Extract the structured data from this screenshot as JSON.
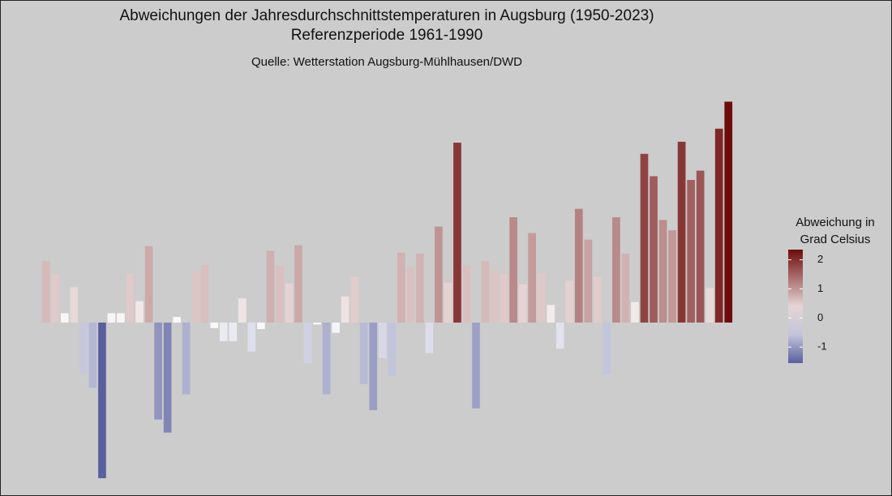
{
  "chart_data": {
    "type": "bar",
    "title": "Abweichungen der Jahresdurchschnittstemperaturen in Augsburg (1950-2023)",
    "subtitle": "Referenzperiode 1961-1990",
    "caption": "Quelle: Wetterstation Augsburg-Mühlhausen/DWD",
    "values": [
      0.66,
      0.52,
      0.1,
      0.38,
      -0.54,
      -0.7,
      -1.67,
      0.1,
      0.1,
      0.52,
      0.23,
      0.82,
      -1.04,
      -1.18,
      0.06,
      -0.77,
      0.56,
      0.62,
      -0.06,
      -0.2,
      -0.2,
      0.26,
      -0.31,
      -0.07,
      0.77,
      0.61,
      0.42,
      0.83,
      -0.44,
      -0.02,
      -0.77,
      -0.11,
      0.28,
      0.49,
      -0.66,
      -0.94,
      -0.38,
      -0.57,
      0.75,
      0.6,
      0.74,
      -0.33,
      1.03,
      0.43,
      1.93,
      0.61,
      -0.92,
      0.66,
      0.57,
      0.52,
      1.13,
      0.41,
      0.96,
      0.53,
      0.19,
      -0.28,
      0.45,
      1.22,
      0.89,
      0.49,
      -0.56,
      1.13,
      0.74,
      0.22,
      1.81,
      1.57,
      1.1,
      0.99,
      1.94,
      1.53,
      1.63,
      0.37,
      2.08,
      2.37
    ],
    "ylim": [
      -1.8,
      2.6
    ],
    "colorbar": {
      "title": [
        "Abweichung in",
        "Grad Celsius"
      ],
      "lim": [
        -1.55,
        2.35
      ],
      "ticks": [
        -1,
        0,
        1,
        2
      ],
      "low": "#5a5f9e",
      "mid": "#ffffff",
      "high": "#6e0b0b"
    }
  }
}
